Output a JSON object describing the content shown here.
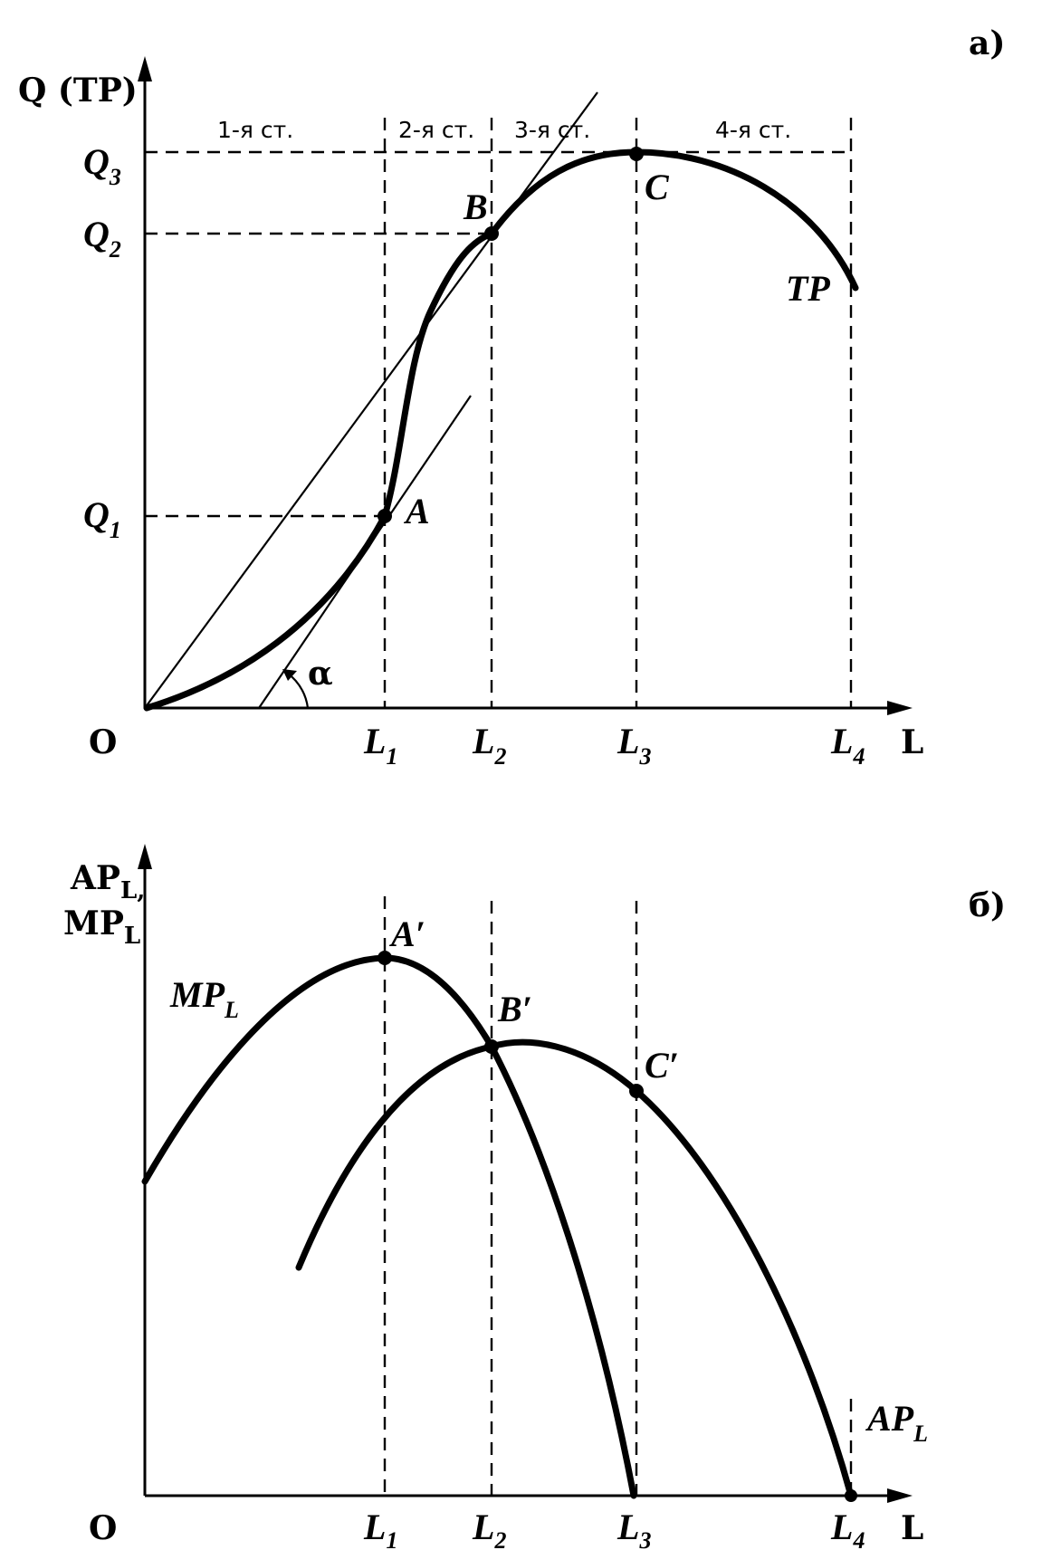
{
  "panel_a": {
    "tag": "а)",
    "y_axis_label": "Q (TP)",
    "x_axis_label": "L",
    "origin_label": "O",
    "q_labels": [
      {
        "main": "Q",
        "sub": "3"
      },
      {
        "main": "Q",
        "sub": "2"
      },
      {
        "main": "Q",
        "sub": "1"
      }
    ],
    "l_labels": [
      {
        "main": "L",
        "sub": "1"
      },
      {
        "main": "L",
        "sub": "2"
      },
      {
        "main": "L",
        "sub": "3"
      },
      {
        "main": "L",
        "sub": "4"
      }
    ],
    "stages": [
      "1-я ст.",
      "2-я ст.",
      "3-я ст.",
      "4-я ст."
    ],
    "points": {
      "a": "A",
      "b": "B",
      "c": "C"
    },
    "curve_label": "TP",
    "angle_label": "α"
  },
  "panel_b": {
    "tag": "б)",
    "y_axis_label_1": {
      "main": "AP",
      "sub": "L,"
    },
    "y_axis_label_2": {
      "main": "MP",
      "sub": "L"
    },
    "x_axis_label": "L",
    "origin_label": "O",
    "l_labels": [
      {
        "main": "L",
        "sub": "1"
      },
      {
        "main": "L",
        "sub": "2"
      },
      {
        "main": "L",
        "sub": "3"
      },
      {
        "main": "L",
        "sub": "4"
      }
    ],
    "points": {
      "a": "A′",
      "b": "B′",
      "c": "C′"
    },
    "mp_label": {
      "main": "MP",
      "sub": "L"
    },
    "ap_label": {
      "main": "AP",
      "sub": "L"
    }
  }
}
